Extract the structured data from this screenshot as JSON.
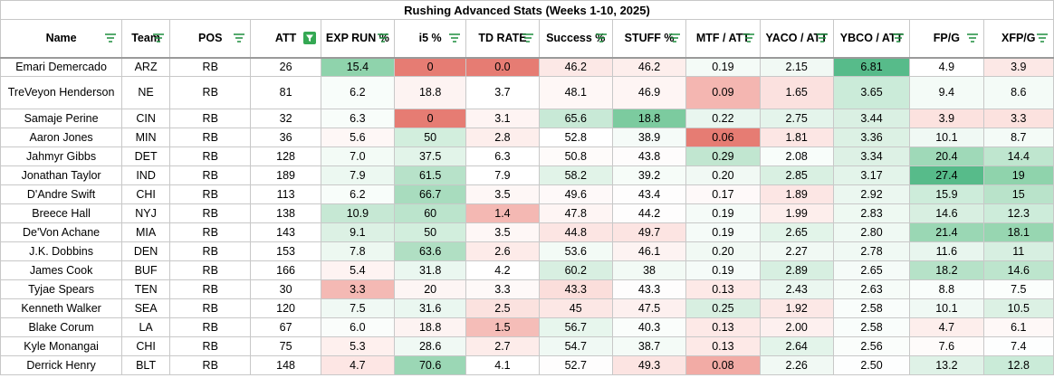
{
  "title": "Rushing Advanced Stats (Weeks 1-10, 2025)",
  "columns": [
    {
      "label": "Name",
      "filter": "filter-icon"
    },
    {
      "label": "Team",
      "filter": "filter-icon"
    },
    {
      "label": "POS",
      "filter": "filter-icon"
    },
    {
      "label": "ATT",
      "filter": "filter-active-icon"
    },
    {
      "label": "EXP RUN %",
      "filter": "filter-icon"
    },
    {
      "label": "i5 %",
      "filter": "filter-icon"
    },
    {
      "label": "TD RATE",
      "filter": "filter-icon"
    },
    {
      "label": "Success %",
      "filter": "filter-icon"
    },
    {
      "label": "STUFF %",
      "filter": "filter-icon"
    },
    {
      "label": "MTF / ATT",
      "filter": "filter-icon"
    },
    {
      "label": "YACO / ATT",
      "filter": "filter-icon"
    },
    {
      "label": "YBCO / ATT",
      "filter": "filter-icon"
    },
    {
      "label": "FP/G",
      "filter": "filter-icon"
    },
    {
      "label": "XFP/G",
      "filter": "filter-icon"
    }
  ],
  "rows": [
    {
      "name": "Emari Demercado",
      "team": "ARZ",
      "pos": "RB",
      "att": "26",
      "exp": "15.4",
      "i5": "0",
      "td": "0.0",
      "success": "46.2",
      "stuff": "46.2",
      "mtf": "0.19",
      "yaco": "2.15",
      "ybco": "6.81",
      "fpg": "4.9",
      "xfpg": "3.9",
      "tall": false,
      "bg": [
        "#ffffff",
        "#ffffff",
        "#ffffff",
        "#ffffff",
        "#8fd3ac",
        "#e67c73",
        "#e67c73",
        "#fce8e6",
        "#fdeeec",
        "#f4fbf7",
        "#f1f9f4",
        "#57bb8a",
        "#ffffff",
        "#fce8e6"
      ]
    },
    {
      "name": "TreVeyon Henderson",
      "team": "NE",
      "pos": "RB",
      "att": "81",
      "exp": "6.2",
      "i5": "18.8",
      "td": "3.7",
      "success": "48.1",
      "stuff": "46.9",
      "mtf": "0.09",
      "yaco": "1.65",
      "ybco": "3.65",
      "fpg": "9.4",
      "xfpg": "8.6",
      "tall": true,
      "bg": [
        "#ffffff",
        "#ffffff",
        "#ffffff",
        "#ffffff",
        "#f8fdfa",
        "#fdf3f2",
        "#ffffff",
        "#fef7f6",
        "#fef5f4",
        "#f4b6b1",
        "#fbe1df",
        "#cbebd9",
        "#f4fbf7",
        "#f4fbf7"
      ]
    },
    {
      "name": "Samaje Perine",
      "team": "CIN",
      "pos": "RB",
      "att": "32",
      "exp": "6.3",
      "i5": "0",
      "td": "3.1",
      "success": "65.6",
      "stuff": "18.8",
      "mtf": "0.22",
      "yaco": "2.75",
      "ybco": "3.44",
      "fpg": "3.9",
      "xfpg": "3.3",
      "tall": false,
      "bg": [
        "#ffffff",
        "#ffffff",
        "#ffffff",
        "#ffffff",
        "#f8fdfa",
        "#e67c73",
        "#fef4f3",
        "#c8e9d6",
        "#7ccb9f",
        "#e9f6ef",
        "#e4f4eb",
        "#daf0e3",
        "#fce2df",
        "#fce2df"
      ]
    },
    {
      "name": "Aaron Jones",
      "team": "MIN",
      "pos": "RB",
      "att": "36",
      "exp": "5.6",
      "i5": "50",
      "td": "2.8",
      "success": "52.8",
      "stuff": "38.9",
      "mtf": "0.06",
      "yaco": "1.81",
      "ybco": "3.36",
      "fpg": "10.1",
      "xfpg": "8.7",
      "tall": false,
      "bg": [
        "#ffffff",
        "#ffffff",
        "#ffffff",
        "#ffffff",
        "#fef7f6",
        "#d2eedd",
        "#fdeeec",
        "#ffffff",
        "#f5fbf8",
        "#e67c73",
        "#fce6e4",
        "#dcf1e4",
        "#f0f9f4",
        "#f4fbf7"
      ]
    },
    {
      "name": "Jahmyr Gibbs",
      "team": "DET",
      "pos": "RB",
      "att": "128",
      "exp": "7.0",
      "i5": "37.5",
      "td": "6.3",
      "success": "50.8",
      "stuff": "43.8",
      "mtf": "0.29",
      "yaco": "2.08",
      "ybco": "3.34",
      "fpg": "20.4",
      "xfpg": "14.4",
      "tall": false,
      "bg": [
        "#ffffff",
        "#ffffff",
        "#ffffff",
        "#ffffff",
        "#f3fbf6",
        "#e2f4e9",
        "#ffffff",
        "#fefbfa",
        "#fefcfc",
        "#c1e6d0",
        "#f8fdfa",
        "#ddf1e5",
        "#9fd9b8",
        "#bfe6cf"
      ]
    },
    {
      "name": "Jonathan Taylor",
      "team": "IND",
      "pos": "RB",
      "att": "189",
      "exp": "7.9",
      "i5": "61.5",
      "td": "7.9",
      "success": "58.2",
      "stuff": "39.2",
      "mtf": "0.20",
      "yaco": "2.85",
      "ybco": "3.17",
      "fpg": "27.4",
      "xfpg": "19",
      "tall": false,
      "bg": [
        "#ffffff",
        "#ffffff",
        "#ffffff",
        "#ffffff",
        "#ecf8f1",
        "#b7e2c9",
        "#ffffff",
        "#e1f3e8",
        "#f6fcf8",
        "#f1f9f4",
        "#d9f0e2",
        "#e3f4ea",
        "#57bb8a",
        "#8fd3ac"
      ]
    },
    {
      "name": "D'Andre Swift",
      "team": "CHI",
      "pos": "RB",
      "att": "113",
      "exp": "6.2",
      "i5": "66.7",
      "td": "3.5",
      "success": "49.6",
      "stuff": "43.4",
      "mtf": "0.17",
      "yaco": "1.89",
      "ybco": "2.92",
      "fpg": "15.9",
      "xfpg": "15",
      "tall": false,
      "bg": [
        "#ffffff",
        "#ffffff",
        "#ffffff",
        "#ffffff",
        "#f8fdfa",
        "#a8dcbe",
        "#fef7f6",
        "#fef9f9",
        "#fefdfd",
        "#fef9f9",
        "#fce6e4",
        "#ebf7f0",
        "#cdecda",
        "#b9e3ca"
      ]
    },
    {
      "name": "Breece Hall",
      "team": "NYJ",
      "pos": "RB",
      "att": "138",
      "exp": "10.9",
      "i5": "60",
      "td": "1.4",
      "success": "47.8",
      "stuff": "44.2",
      "mtf": "0.19",
      "yaco": "1.99",
      "ybco": "2.83",
      "fpg": "14.6",
      "xfpg": "12.3",
      "tall": false,
      "bg": [
        "#ffffff",
        "#ffffff",
        "#ffffff",
        "#ffffff",
        "#c6e8d4",
        "#bbe4cc",
        "#f4b8b3",
        "#fef5f4",
        "#fefdfd",
        "#f5fbf8",
        "#fdeeec",
        "#eef9f2",
        "#d8efe1",
        "#cdecda"
      ]
    },
    {
      "name": "De'Von Achane",
      "team": "MIA",
      "pos": "RB",
      "att": "143",
      "exp": "9.1",
      "i5": "50",
      "td": "3.5",
      "success": "44.8",
      "stuff": "49.7",
      "mtf": "0.19",
      "yaco": "2.65",
      "ybco": "2.80",
      "fpg": "21.4",
      "xfpg": "18.1",
      "tall": false,
      "bg": [
        "#ffffff",
        "#ffffff",
        "#ffffff",
        "#ffffff",
        "#dcf1e4",
        "#d2eedd",
        "#fef7f6",
        "#fce5e3",
        "#fce4e2",
        "#f5fbf8",
        "#e2f4e9",
        "#eff9f3",
        "#9ad7b4",
        "#97d6b1"
      ]
    },
    {
      "name": "J.K. Dobbins",
      "team": "DEN",
      "pos": "RB",
      "att": "153",
      "exp": "7.8",
      "i5": "63.6",
      "td": "2.6",
      "success": "53.6",
      "stuff": "46.1",
      "mtf": "0.20",
      "yaco": "2.27",
      "ybco": "2.78",
      "fpg": "11.6",
      "xfpg": "11",
      "tall": false,
      "bg": [
        "#ffffff",
        "#ffffff",
        "#ffffff",
        "#ffffff",
        "#edf8f1",
        "#b0dfc3",
        "#fdebe9",
        "#f3fbf6",
        "#fdf3f2",
        "#f1f9f4",
        "#f1f9f4",
        "#f0f9f4",
        "#e8f6ee",
        "#d7efe1"
      ]
    },
    {
      "name": "James Cook",
      "team": "BUF",
      "pos": "RB",
      "att": "166",
      "exp": "5.4",
      "i5": "31.8",
      "td": "4.2",
      "success": "60.2",
      "stuff": "38",
      "mtf": "0.19",
      "yaco": "2.89",
      "ybco": "2.65",
      "fpg": "18.2",
      "xfpg": "14.6",
      "tall": false,
      "bg": [
        "#ffffff",
        "#ffffff",
        "#ffffff",
        "#ffffff",
        "#fef3f2",
        "#eaf7f0",
        "#ffffff",
        "#d8efe1",
        "#f2faf5",
        "#f5fbf8",
        "#d7efe1",
        "#f5fbf8",
        "#b6e2c8",
        "#bde5cd"
      ]
    },
    {
      "name": "Tyjae Spears",
      "team": "TEN",
      "pos": "RB",
      "att": "30",
      "exp": "3.3",
      "i5": "20",
      "td": "3.3",
      "success": "43.3",
      "stuff": "43.3",
      "mtf": "0.13",
      "yaco": "2.43",
      "ybco": "2.63",
      "fpg": "8.8",
      "xfpg": "7.5",
      "tall": false,
      "bg": [
        "#ffffff",
        "#ffffff",
        "#ffffff",
        "#ffffff",
        "#f4b9b4",
        "#fdf5f4",
        "#fef9f8",
        "#fbdedb",
        "#fefdfd",
        "#fde9e7",
        "#ebf7f0",
        "#f6fcf8",
        "#f9fdfb",
        "#fbfefc"
      ]
    },
    {
      "name": "Kenneth Walker",
      "team": "SEA",
      "pos": "RB",
      "att": "120",
      "exp": "7.5",
      "i5": "31.6",
      "td": "2.5",
      "success": "45",
      "stuff": "47.5",
      "mtf": "0.25",
      "yaco": "1.92",
      "ybco": "2.58",
      "fpg": "10.1",
      "xfpg": "10.5",
      "tall": false,
      "bg": [
        "#ffffff",
        "#ffffff",
        "#ffffff",
        "#ffffff",
        "#f0f9f4",
        "#eaf7f0",
        "#fbe2df",
        "#fce7e5",
        "#fdf0ef",
        "#d8efe1",
        "#fce8e6",
        "#f9fdfb",
        "#f0f9f4",
        "#dcf1e4"
      ]
    },
    {
      "name": "Blake Corum",
      "team": "LA",
      "pos": "RB",
      "att": "67",
      "exp": "6.0",
      "i5": "18.8",
      "td": "1.5",
      "success": "56.7",
      "stuff": "40.3",
      "mtf": "0.13",
      "yaco": "2.00",
      "ybco": "2.58",
      "fpg": "4.7",
      "xfpg": "6.1",
      "tall": false,
      "bg": [
        "#ffffff",
        "#ffffff",
        "#ffffff",
        "#ffffff",
        "#fafdfb",
        "#fdf3f2",
        "#f5bdb8",
        "#e7f6ed",
        "#fafdfb",
        "#fde9e7",
        "#fdf0ef",
        "#f9fdfb",
        "#fdeeec",
        "#fef8f7"
      ]
    },
    {
      "name": "Kyle Monangai",
      "team": "CHI",
      "pos": "RB",
      "att": "75",
      "exp": "5.3",
      "i5": "28.6",
      "td": "2.7",
      "success": "54.7",
      "stuff": "38.7",
      "mtf": "0.13",
      "yaco": "2.64",
      "ybco": "2.56",
      "fpg": "7.6",
      "xfpg": "7.4",
      "tall": false,
      "bg": [
        "#ffffff",
        "#ffffff",
        "#ffffff",
        "#ffffff",
        "#fef0ee",
        "#f0f9f4",
        "#fdecea",
        "#f0f9f4",
        "#f4fbf7",
        "#fde9e7",
        "#e3f4ea",
        "#fafdfb",
        "#fefbfa",
        "#fdfefe"
      ]
    },
    {
      "name": "Derrick Henry",
      "team": "BLT",
      "pos": "RB",
      "att": "148",
      "exp": "4.7",
      "i5": "70.6",
      "td": "4.1",
      "success": "52.7",
      "stuff": "49.3",
      "mtf": "0.08",
      "yaco": "2.26",
      "ybco": "2.50",
      "fpg": "13.2",
      "xfpg": "12.8",
      "tall": false,
      "bg": [
        "#ffffff",
        "#ffffff",
        "#ffffff",
        "#ffffff",
        "#fde6e4",
        "#9bd7b5",
        "#ffffff",
        "#fefdfd",
        "#fce4e2",
        "#f2aba5",
        "#f1f9f4",
        "#fdfefe",
        "#dff2e7",
        "#caebd8"
      ]
    }
  ],
  "colors": {
    "header_border": "#9a9a9a",
    "filter_active": "#34a853",
    "filter_icon": "#1e8e3e"
  }
}
